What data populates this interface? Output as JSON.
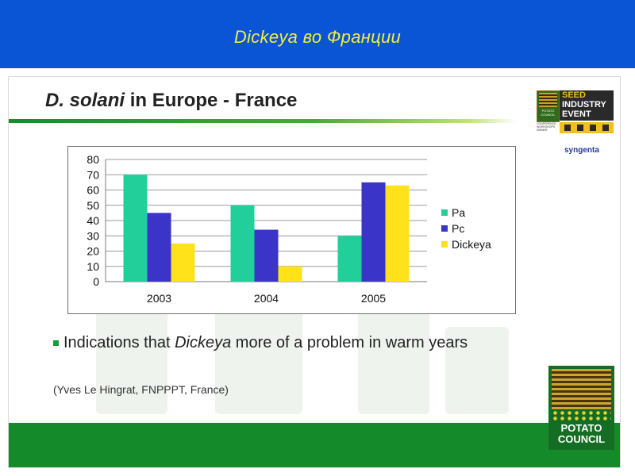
{
  "banner": {
    "title": "Dickeya во Франции"
  },
  "slide": {
    "title_italic": "D. solani",
    "title_rest": " in Europe - France",
    "bullet_prefix": "Indications that ",
    "bullet_italic": "Dickeya",
    "bullet_suffix": " more of a problem in warm years",
    "citation": "(Yves Le Hingrat, FNPPPT, France)"
  },
  "logos": {
    "seed_event": {
      "line1": "SEED",
      "line2": "INDUSTRY",
      "line3": "EVENT",
      "mini_label": "POTATO COUNCIL",
      "strip_text": "CONFERENCE WORKSHOPS DINNER"
    },
    "syngenta": "syngenta",
    "potato_council": {
      "line1": "POTATO",
      "line2": "COUNCIL"
    }
  },
  "colors": {
    "banner_bg": "#0a54d6",
    "banner_text": "#f4ee3a",
    "green_bar": "#158a2a",
    "pa": "#22cf9b",
    "pc": "#3a34c9",
    "dickeya": "#ffe21a"
  },
  "chart_data": {
    "type": "bar",
    "categories": [
      "2003",
      "2004",
      "2005"
    ],
    "series": [
      {
        "name": "Pa",
        "values": [
          70,
          50,
          30
        ]
      },
      {
        "name": "Pc",
        "values": [
          45,
          34,
          65
        ]
      },
      {
        "name": "Dickeya",
        "values": [
          25,
          10,
          63
        ]
      }
    ],
    "title": "",
    "xlabel": "",
    "ylabel": "",
    "ylim": [
      0,
      80
    ],
    "yticks": [
      0,
      10,
      20,
      30,
      40,
      50,
      60,
      70,
      80
    ],
    "grid": true,
    "legend": "right"
  }
}
